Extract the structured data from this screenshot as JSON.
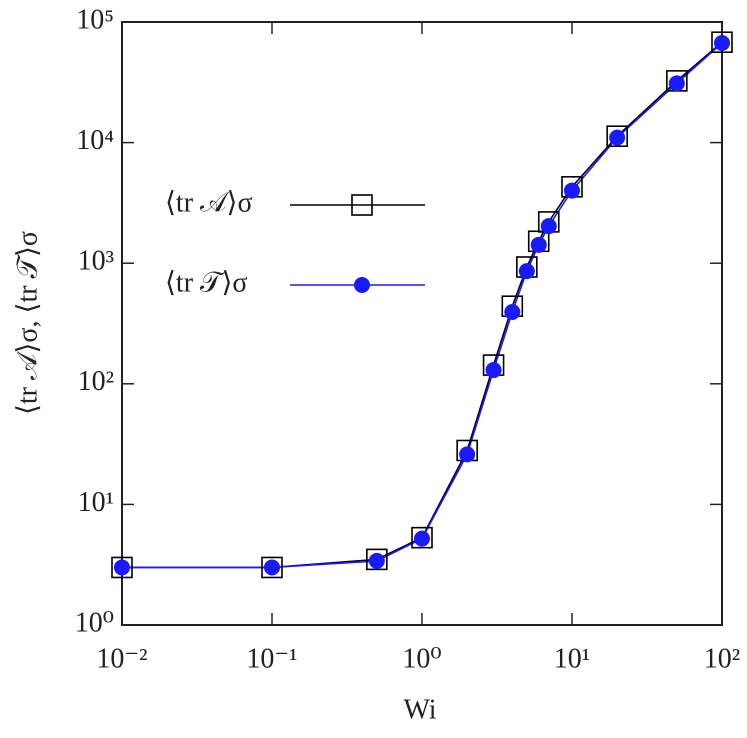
{
  "chart_data": {
    "type": "line",
    "x_label": "Wi",
    "y_label": "⟨tr 𝒜⟩σ,  ⟨tr 𝒯⟩σ",
    "x_scale": "log",
    "y_scale": "log",
    "xlim": [
      0.01,
      100
    ],
    "ylim": [
      1,
      100000
    ],
    "xticks": [
      {
        "value": 0.01,
        "label": "10⁻²"
      },
      {
        "value": 0.1,
        "label": "10⁻¹"
      },
      {
        "value": 1,
        "label": "10⁰"
      },
      {
        "value": 10,
        "label": "10¹"
      },
      {
        "value": 100,
        "label": "10²"
      }
    ],
    "yticks": [
      {
        "value": 1,
        "label": "10⁰"
      },
      {
        "value": 10,
        "label": "10¹"
      },
      {
        "value": 100,
        "label": "10²"
      },
      {
        "value": 1000,
        "label": "10³"
      },
      {
        "value": 10000,
        "label": "10⁴"
      },
      {
        "value": 100000,
        "label": "10⁵"
      }
    ],
    "legend": "upper left",
    "x": [
      0.01,
      0.1,
      0.5,
      1,
      2,
      3,
      4,
      5,
      6,
      7,
      10,
      20,
      50,
      100
    ],
    "series": [
      {
        "name": "⟨tr 𝒜⟩σ",
        "color": "#000000",
        "marker": "open-square",
        "values": [
          3.0,
          3.0,
          3.5,
          5.3,
          28,
          143,
          440,
          930,
          1520,
          2200,
          4300,
          11300,
          32500,
          68000
        ]
      },
      {
        "name": "⟨tr 𝒯⟩σ",
        "color": "#1a1aff",
        "marker": "filled-circle",
        "values": [
          3.0,
          3.0,
          3.4,
          5.2,
          26,
          130,
          394,
          860,
          1420,
          2030,
          4000,
          11000,
          31000,
          67000
        ]
      }
    ]
  }
}
